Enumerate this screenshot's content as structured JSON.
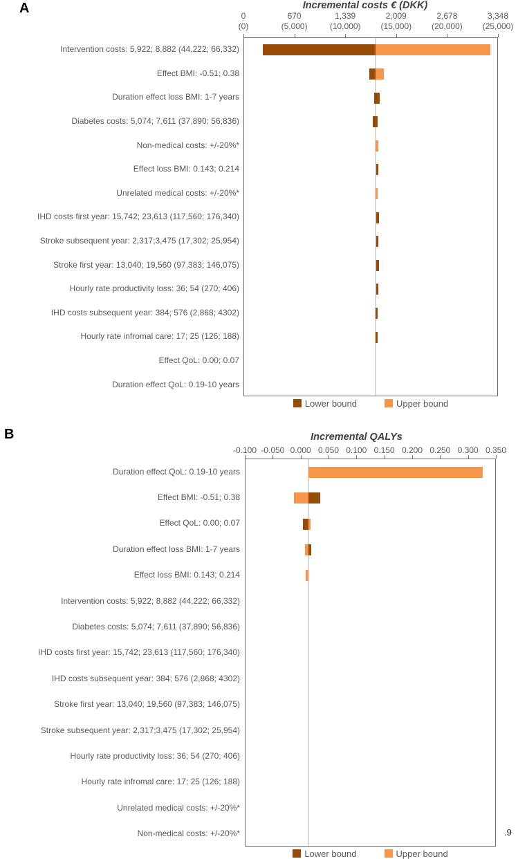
{
  "page_fragment": ".9",
  "legend": {
    "lower_label": "Lower bound",
    "upper_label": "Upper bound"
  },
  "colors": {
    "lower_bound": "#964B06",
    "upper_bound": "#F5964B",
    "axis_text": "#595959",
    "label_text": "#595959",
    "title_text": "#404040",
    "panel_label_text": "#000000",
    "plot_border": "#6E6E6E",
    "baseline_gridline": "#D9D9D9"
  },
  "chart_data": [
    {
      "type": "bar",
      "variant": "tornado",
      "panel_label": "A",
      "title": "Incremental costs € (DKK)",
      "legend_position": "bottom",
      "axis": {
        "min": 0,
        "max": 25000,
        "baseline": 12900,
        "units": [
          "EUR",
          "DKK"
        ],
        "tick_label_rows": [
          [
            "0",
            "670",
            "1,339",
            "2,009",
            "2,678",
            "3,348"
          ],
          [
            "(0)",
            "(5,000)",
            "(10,000)",
            "(15,000)",
            "(20,000)",
            "(25,000)"
          ]
        ]
      },
      "rows": [
        {
          "label": "Intervention costs: 5,922; 8,882 (44,222; 66,332)",
          "lower": [
            1830,
            12900
          ],
          "upper": [
            12900,
            24190
          ]
        },
        {
          "label": "Effect BMI: -0.51; 0.38",
          "lower": [
            12290,
            12900
          ],
          "upper": [
            12900,
            13700
          ]
        },
        {
          "label": "Duration effect loss BMI: 1-7 years",
          "lower": [
            12740,
            13320
          ],
          "upper": null
        },
        {
          "label": "Diabetes costs: 5,074; 7,611 (37,890; 56,836)",
          "lower": [
            12660,
            13100
          ],
          "upper": null
        },
        {
          "label": "Non-medical costs: +/-20%*",
          "lower": null,
          "upper": [
            12930,
            13160
          ]
        },
        {
          "label": "Effect loss BMI: 0.143; 0.214",
          "lower": [
            12950,
            13180
          ],
          "upper": null
        },
        {
          "label": "Unrelated medical costs: +/-20%*",
          "lower": null,
          "upper": [
            12920,
            13130
          ]
        },
        {
          "label": "IHD costs first year: 15,742; 23,613 (117,560; 176,340)",
          "lower": [
            12970,
            13230
          ],
          "upper": null
        },
        {
          "label": "Stroke subsequent year: 2,317;3,475 (17,302; 25,954)",
          "lower": [
            12970,
            13180
          ],
          "upper": null
        },
        {
          "label": "Stroke first year: 13,040; 19,560 (97,383; 146,075)",
          "lower": [
            12970,
            13230
          ],
          "upper": null
        },
        {
          "label": "Hourly rate productivity loss: 36; 54 (270; 406)",
          "lower": [
            12990,
            13180
          ],
          "upper": null
        },
        {
          "label": "IHD costs subsequent year: 384; 576 (2,868; 4302)",
          "lower": [
            12910,
            13110
          ],
          "upper": null
        },
        {
          "label": "Hourly rate infromal care: 17; 25 (126; 188)",
          "lower": [
            12910,
            13110
          ],
          "upper": null
        },
        {
          "label": "Effect QoL: 0.00; 0.07",
          "lower": null,
          "upper": null
        },
        {
          "label": "Duration effect QoL: 0.19-10 years",
          "lower": null,
          "upper": null
        }
      ]
    },
    {
      "type": "bar",
      "variant": "tornado",
      "panel_label": "B",
      "title": "Incremental QALYs",
      "legend_position": "bottom",
      "axis": {
        "min": -0.1,
        "max": 0.35,
        "baseline": 0.0125,
        "units": [
          "QALY"
        ],
        "tick_label_rows": [
          [
            "-0.100",
            "-0.050",
            "0.000",
            "0.050",
            "0.100",
            "0.150",
            "0.200",
            "0.250",
            "0.300",
            "0.350"
          ]
        ]
      },
      "rows": [
        {
          "label": "Duration effect QoL: 0.19-10 years",
          "lower": null,
          "upper": [
            0.0125,
            0.325
          ]
        },
        {
          "label": "Effect BMI: -0.51; 0.38",
          "lower": [
            0.0125,
            0.034
          ],
          "upper": [
            -0.013,
            0.0125
          ]
        },
        {
          "label": "Effect QoL: 0.00; 0.07",
          "lower": [
            0.0025,
            0.0125
          ],
          "upper": [
            0.0125,
            0.017
          ]
        },
        {
          "label": "Duration effect loss BMI: 1-7 years",
          "lower": [
            0.0125,
            0.018
          ],
          "upper": [
            0.006,
            0.0125
          ]
        },
        {
          "label": "Effect loss BMI: 0.143; 0.214",
          "lower": null,
          "upper": [
            0.008,
            0.0125
          ]
        },
        {
          "label": "Intervention costs: 5,922; 8,882 (44,222; 66,332)",
          "lower": null,
          "upper": null
        },
        {
          "label": "Diabetes costs: 5,074; 7,611 (37,890; 56,836)",
          "lower": null,
          "upper": null
        },
        {
          "label": "IHD costs first year: 15,742; 23,613 (117,560; 176,340)",
          "lower": null,
          "upper": null
        },
        {
          "label": "IHD costs subsequent year: 384; 576 (2,868; 4302)",
          "lower": null,
          "upper": null
        },
        {
          "label": "Stroke first year: 13,040; 19,560 (97,383; 146,075)",
          "lower": null,
          "upper": null
        },
        {
          "label": "Stroke subsequent year: 2,317;3,475 (17,302; 25,954)",
          "lower": null,
          "upper": null
        },
        {
          "label": "Hourly rate productivity loss: 36; 54 (270; 406)",
          "lower": null,
          "upper": null
        },
        {
          "label": "Hourly rate infromal care: 17; 25 (126; 188)",
          "lower": null,
          "upper": null
        },
        {
          "label": "Unrelated medical costs: +/-20%*",
          "lower": null,
          "upper": null
        },
        {
          "label": "Non-medical costs: +/-20%*",
          "lower": null,
          "upper": null
        }
      ]
    }
  ]
}
